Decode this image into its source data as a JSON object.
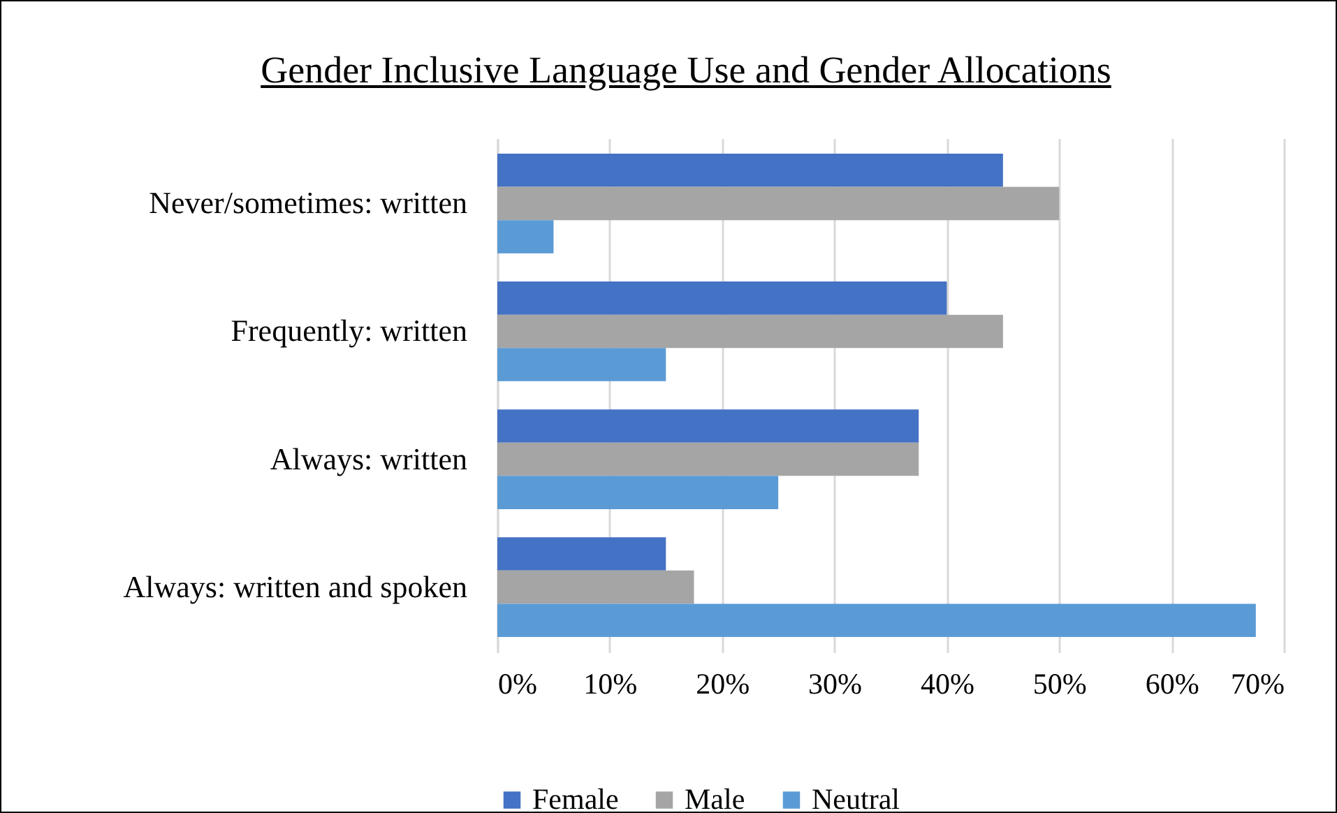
{
  "chart_data": {
    "type": "bar",
    "orientation": "horizontal",
    "title": "Gender Inclusive Language Use and Gender Allocations",
    "categories": [
      "Never/sometimes: written",
      "Frequently: written",
      "Always: written",
      "Always: written and spoken"
    ],
    "series": [
      {
        "name": "Female",
        "color": "#4472c4",
        "values": [
          45,
          40,
          37.5,
          15
        ]
      },
      {
        "name": "Male",
        "color": "#a5a5a5",
        "values": [
          50,
          45,
          37.5,
          17.5
        ]
      },
      {
        "name": "Neutral",
        "color": "#5b9bd5",
        "values": [
          5,
          15,
          25,
          67.5
        ]
      }
    ],
    "xlim": [
      0,
      70
    ],
    "xticks": [
      {
        "value": 0,
        "label": "0%"
      },
      {
        "value": 10,
        "label": "10%"
      },
      {
        "value": 20,
        "label": "20%"
      },
      {
        "value": 30,
        "label": "30%"
      },
      {
        "value": 40,
        "label": "40%"
      },
      {
        "value": 50,
        "label": "50%"
      },
      {
        "value": 60,
        "label": "60%"
      },
      {
        "value": 70,
        "label": "70%"
      }
    ],
    "grid": "x",
    "legend": "bottom"
  }
}
